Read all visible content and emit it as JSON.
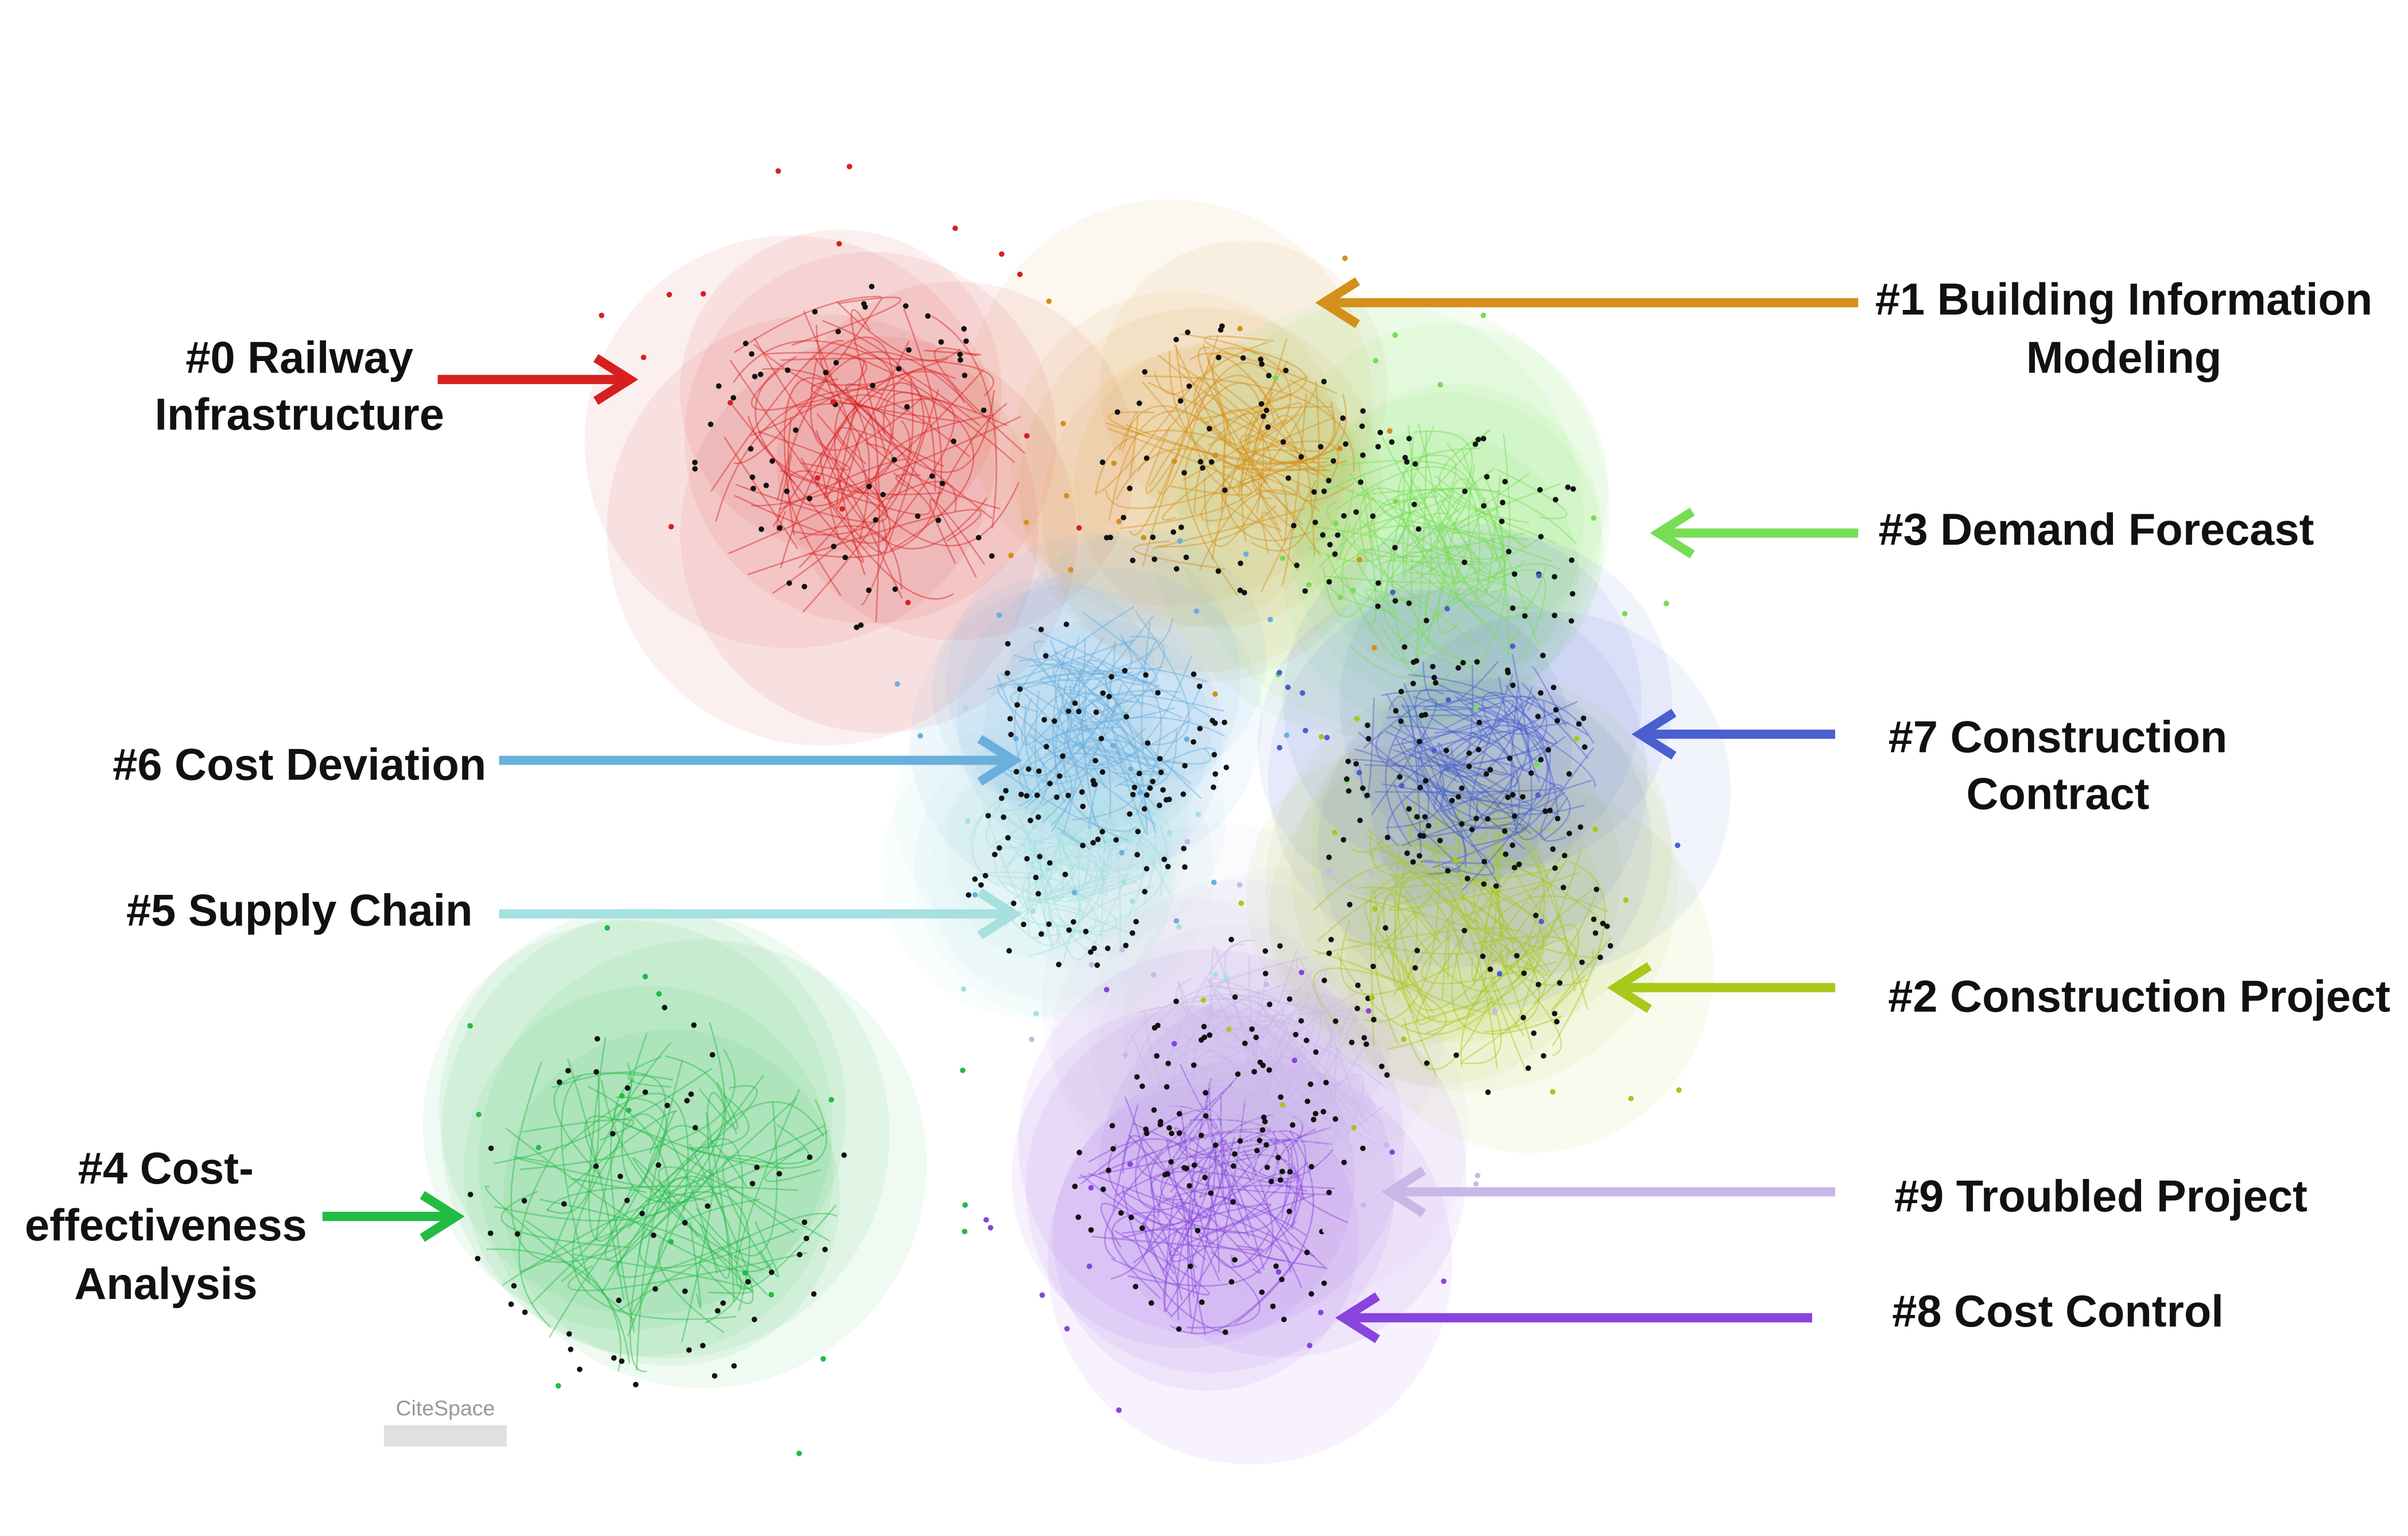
{
  "clusters": [
    {
      "lines": [
        "#0 Railway",
        "Infrastructure"
      ],
      "color": "#d62020"
    },
    {
      "lines": [
        "#1 Building Information",
        "Modeling"
      ],
      "color": "#d4901a"
    },
    {
      "lines": [
        "#2 Construction Project"
      ],
      "color": "#a8c81a"
    },
    {
      "lines": [
        "#3 Demand Forecast"
      ],
      "color": "#77dd55"
    },
    {
      "lines": [
        "#4 Cost-",
        "effectiveness",
        "Analysis"
      ],
      "color": "#22bb44"
    },
    {
      "lines": [
        "#5 Supply Chain"
      ],
      "color": "#a6e0e0"
    },
    {
      "lines": [
        "#6 Cost Deviation"
      ],
      "color": "#6ab0dd"
    },
    {
      "lines": [
        "#7 Construction",
        "Contract"
      ],
      "color": "#4a5fd0"
    },
    {
      "lines": [
        "#8 Cost Control"
      ],
      "color": "#8844dd"
    },
    {
      "lines": [
        "#9 Troubled Project"
      ],
      "color": "#c8b8e8"
    }
  ],
  "watermark": "CiteSpace"
}
